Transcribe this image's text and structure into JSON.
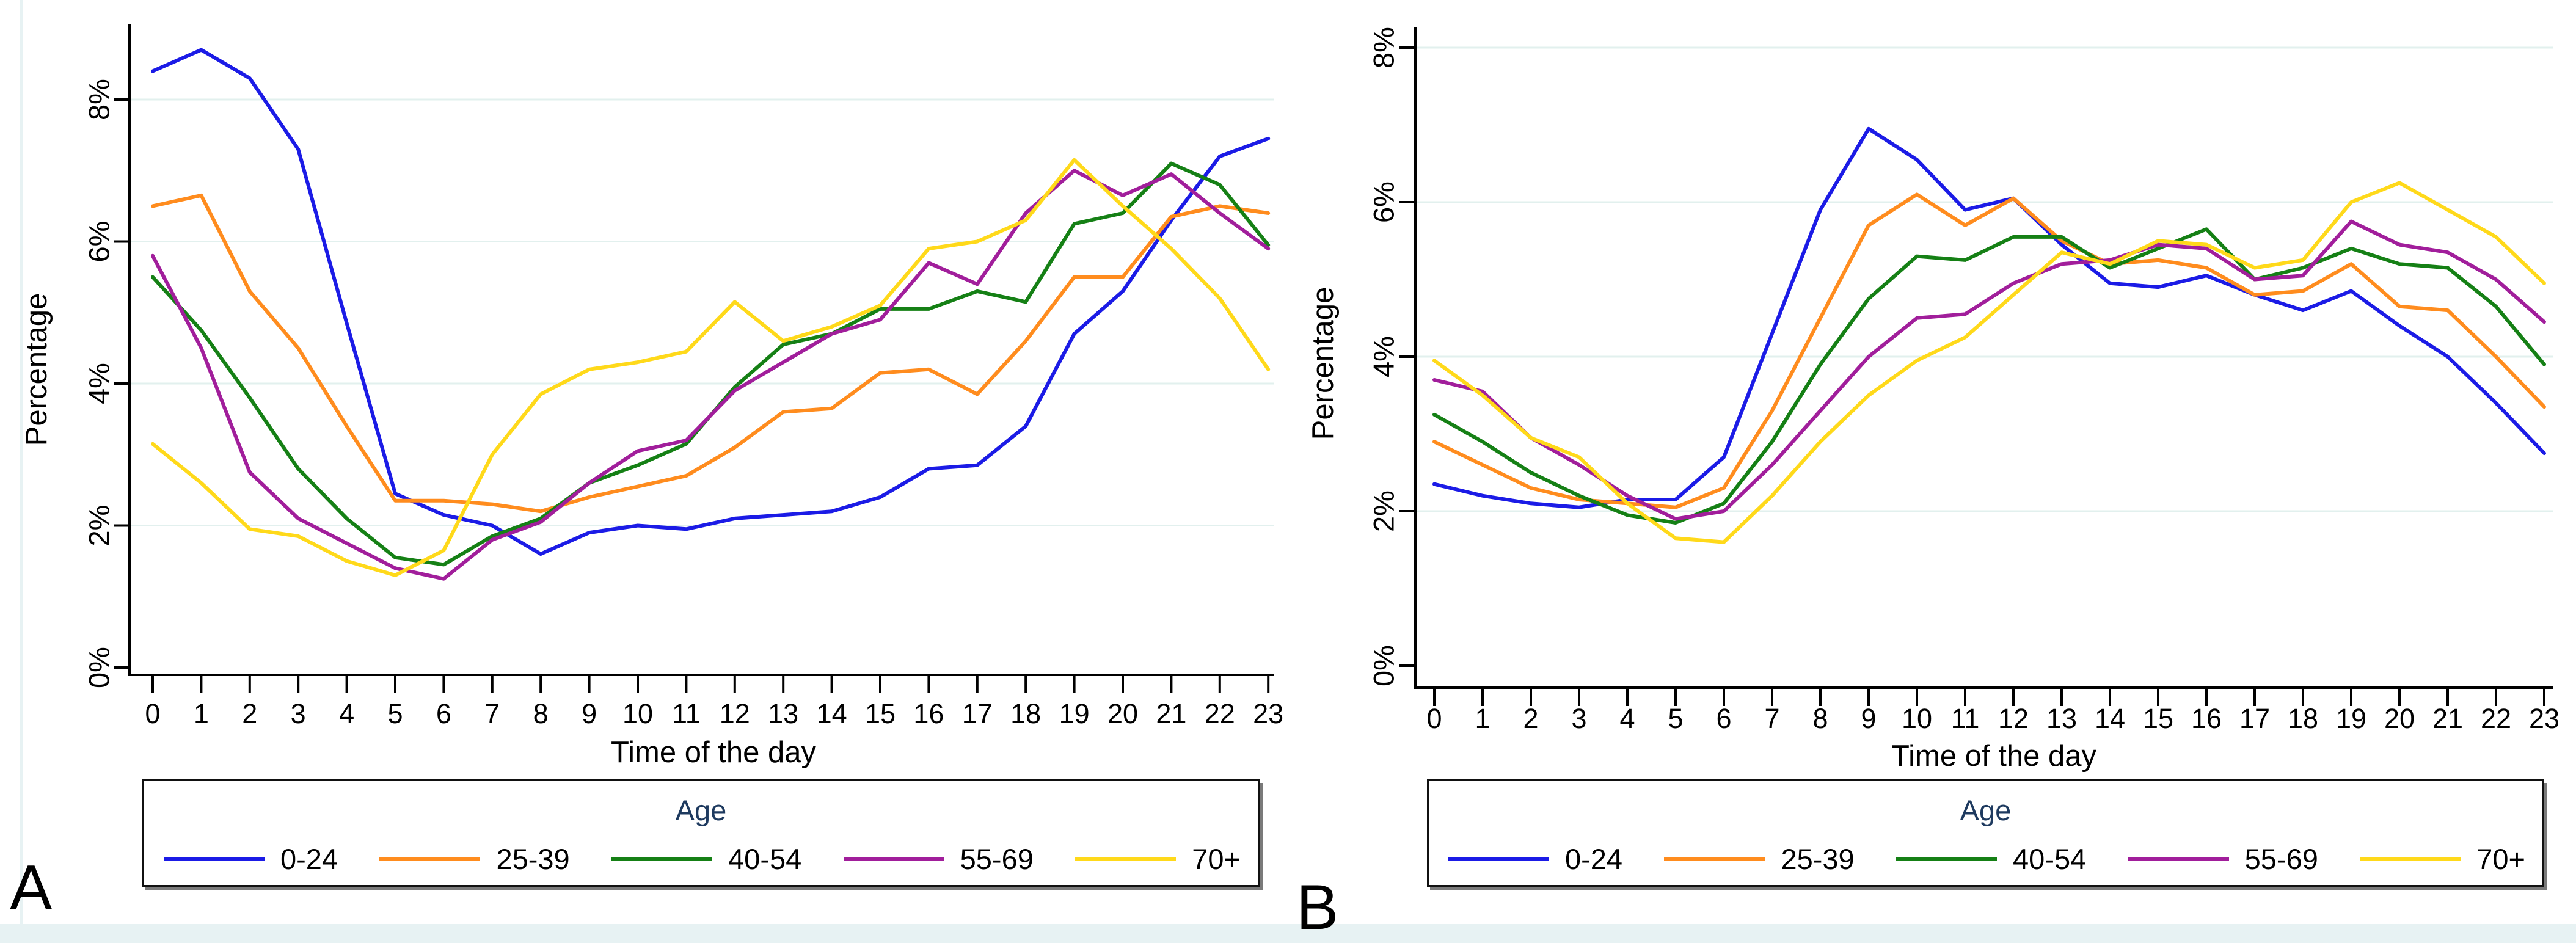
{
  "figure": {
    "panel_labels": [
      "A",
      "B"
    ],
    "background_strip_color": "#e7f2f3"
  },
  "chart_data": [
    {
      "panel": "A",
      "type": "line",
      "title": "",
      "xlabel": "Time of the day",
      "ylabel": "Percentage",
      "x": [
        0,
        1,
        2,
        3,
        4,
        5,
        6,
        7,
        8,
        9,
        10,
        11,
        12,
        13,
        14,
        15,
        16,
        17,
        18,
        19,
        20,
        21,
        22,
        23
      ],
      "ylim": [
        0,
        9
      ],
      "yticks": [
        {
          "value": 0,
          "label": "0%"
        },
        {
          "value": 2,
          "label": "2%"
        },
        {
          "value": 4,
          "label": "4%"
        },
        {
          "value": 6,
          "label": "6%"
        },
        {
          "value": 8,
          "label": "8%"
        }
      ],
      "grid": true,
      "grid_color": "#e2f0ee",
      "axis_color": "#000000",
      "legend": {
        "title": "Age",
        "position": "bottom"
      },
      "series": [
        {
          "name": "0-24",
          "color": "#1b1be6",
          "values": [
            8.4,
            8.7,
            8.3,
            7.3,
            4.85,
            2.45,
            2.15,
            2.0,
            1.6,
            1.9,
            2.0,
            1.95,
            2.1,
            2.15,
            2.2,
            2.4,
            2.8,
            2.85,
            3.4,
            4.7,
            5.3,
            6.3,
            7.2,
            7.45
          ]
        },
        {
          "name": "25-39",
          "color": "#ff8c1e",
          "values": [
            6.5,
            6.65,
            5.3,
            4.5,
            3.4,
            2.35,
            2.35,
            2.3,
            2.2,
            2.4,
            2.55,
            2.7,
            3.1,
            3.6,
            3.65,
            4.15,
            4.2,
            3.85,
            4.6,
            5.5,
            5.5,
            6.35,
            6.5,
            6.4
          ]
        },
        {
          "name": "40-54",
          "color": "#158015",
          "values": [
            5.5,
            4.75,
            3.8,
            2.8,
            2.1,
            1.55,
            1.45,
            1.85,
            2.1,
            2.6,
            2.85,
            3.15,
            3.95,
            4.55,
            4.7,
            5.05,
            5.05,
            5.3,
            5.15,
            6.25,
            6.4,
            7.1,
            6.8,
            5.95
          ]
        },
        {
          "name": "55-69",
          "color": "#a11e9b",
          "values": [
            5.8,
            4.5,
            2.75,
            2.1,
            1.75,
            1.4,
            1.25,
            1.8,
            2.05,
            2.6,
            3.05,
            3.2,
            3.9,
            4.3,
            4.7,
            4.9,
            5.7,
            5.4,
            6.4,
            7.0,
            6.65,
            6.95,
            6.4,
            5.9
          ]
        },
        {
          "name": "70+",
          "color": "#ffd91a",
          "values": [
            3.15,
            2.6,
            1.95,
            1.85,
            1.5,
            1.3,
            1.65,
            3.0,
            3.85,
            4.2,
            4.3,
            4.45,
            5.15,
            4.6,
            4.8,
            5.1,
            5.9,
            6.0,
            6.3,
            7.15,
            6.5,
            5.9,
            5.2,
            4.2
          ]
        }
      ]
    },
    {
      "panel": "B",
      "type": "line",
      "title": "",
      "xlabel": "Time of the day",
      "ylabel": "Percentage",
      "x": [
        0,
        1,
        2,
        3,
        4,
        5,
        6,
        7,
        8,
        9,
        10,
        11,
        12,
        13,
        14,
        15,
        16,
        17,
        18,
        19,
        20,
        21,
        22,
        23
      ],
      "ylim": [
        0,
        8.3
      ],
      "yticks": [
        {
          "value": 0,
          "label": "0%"
        },
        {
          "value": 2,
          "label": "2%"
        },
        {
          "value": 4,
          "label": "4%"
        },
        {
          "value": 6,
          "label": "6%"
        },
        {
          "value": 8,
          "label": "8%"
        }
      ],
      "grid": true,
      "grid_color": "#e2f0ee",
      "axis_color": "#000000",
      "legend": {
        "title": "Age",
        "position": "bottom"
      },
      "series": [
        {
          "name": "0-24",
          "color": "#1b1be6",
          "values": [
            2.35,
            2.2,
            2.1,
            2.05,
            2.15,
            2.15,
            2.7,
            4.3,
            5.9,
            6.95,
            6.55,
            5.9,
            6.05,
            5.45,
            4.95,
            4.9,
            5.05,
            4.8,
            4.6,
            4.85,
            4.4,
            4.0,
            3.4,
            2.75
          ]
        },
        {
          "name": "25-39",
          "color": "#ff8c1e",
          "values": [
            2.9,
            2.6,
            2.3,
            2.15,
            2.1,
            2.05,
            2.3,
            3.3,
            4.5,
            5.7,
            6.1,
            5.7,
            6.05,
            5.5,
            5.2,
            5.25,
            5.15,
            4.8,
            4.85,
            5.2,
            4.65,
            4.6,
            4.0,
            3.35
          ]
        },
        {
          "name": "40-54",
          "color": "#158015",
          "values": [
            3.25,
            2.9,
            2.5,
            2.2,
            1.95,
            1.85,
            2.1,
            2.9,
            3.9,
            4.75,
            5.3,
            5.25,
            5.55,
            5.55,
            5.15,
            5.4,
            5.65,
            5.0,
            5.15,
            5.4,
            5.2,
            5.15,
            4.65,
            3.9
          ]
        },
        {
          "name": "55-69",
          "color": "#a11e9b",
          "values": [
            3.7,
            3.55,
            2.95,
            2.6,
            2.2,
            1.9,
            2.0,
            2.6,
            3.3,
            4.0,
            4.5,
            4.55,
            4.95,
            5.2,
            5.25,
            5.45,
            5.4,
            5.0,
            5.05,
            5.75,
            5.45,
            5.35,
            5.0,
            4.45
          ]
        },
        {
          "name": "70+",
          "color": "#ffd91a",
          "values": [
            3.95,
            3.5,
            2.95,
            2.7,
            2.1,
            1.65,
            1.6,
            2.2,
            2.9,
            3.5,
            3.95,
            4.25,
            4.8,
            5.35,
            5.2,
            5.5,
            5.45,
            5.15,
            5.25,
            6.0,
            6.25,
            5.9,
            5.55,
            4.95
          ]
        }
      ]
    }
  ]
}
